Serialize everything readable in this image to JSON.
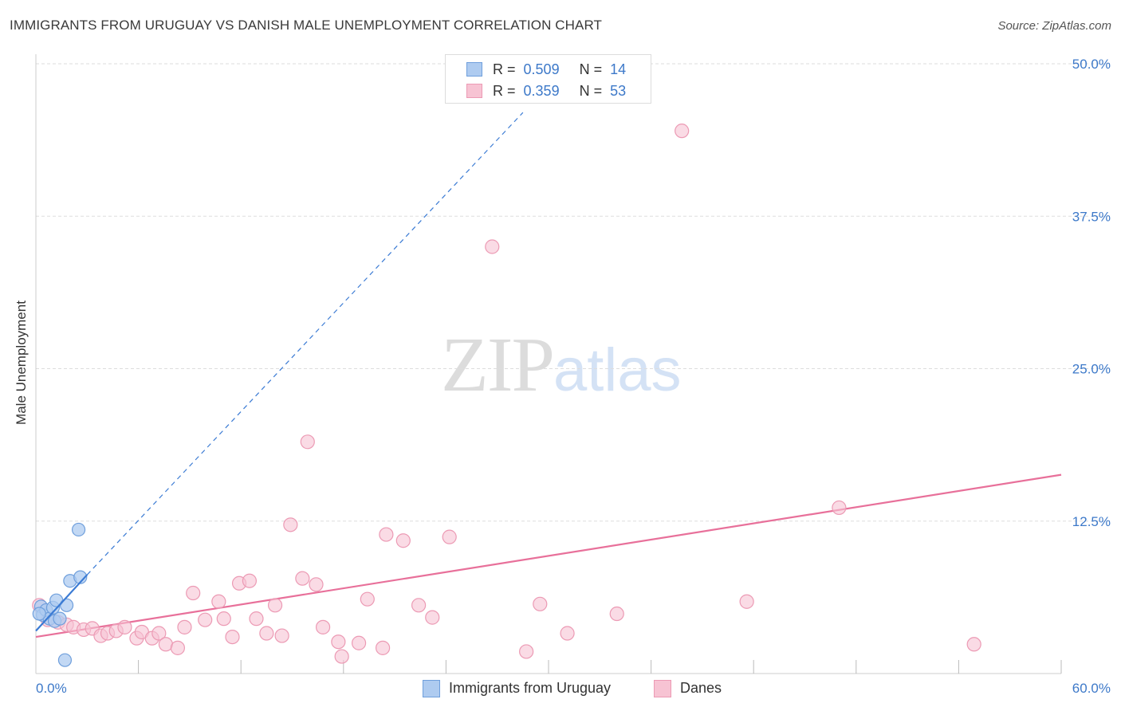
{
  "header": {
    "title": "IMMIGRANTS FROM URUGUAY VS DANISH MALE UNEMPLOYMENT CORRELATION CHART",
    "source": "Source: ZipAtlas.com"
  },
  "watermark": {
    "zip": "ZIP",
    "atlas": "atlas"
  },
  "legend_top": {
    "rows": [
      {
        "r_label": "R =",
        "r_value": "0.509",
        "n_label": "N =",
        "n_value": "14"
      },
      {
        "r_label": "R =",
        "r_value": "0.359",
        "n_label": "N =",
        "n_value": "53"
      }
    ]
  },
  "legend_bottom": {
    "items": [
      {
        "label": "Immigrants from Uruguay"
      },
      {
        "label": "Danes"
      }
    ]
  },
  "colors": {
    "uruguay_fill": "#aecbf0",
    "uruguay_stroke": "#6f9fdc",
    "uruguay_line": "#3b7bd4",
    "danes_fill": "#f7c3d3",
    "danes_stroke": "#ec9ab4",
    "danes_line": "#e8709a",
    "axis_text": "#3d79c9",
    "grid": "#dddddd"
  },
  "chart_data": {
    "type": "scatter",
    "title": "IMMIGRANTS FROM URUGUAY VS DANISH MALE UNEMPLOYMENT CORRELATION CHART",
    "xlabel": "",
    "ylabel": "Male Unemployment",
    "xlim": [
      0,
      60
    ],
    "ylim": [
      0,
      50
    ],
    "x_tick_labels": [
      "0.0%",
      "60.0%"
    ],
    "y_ticks": [
      12.5,
      25.0,
      37.5,
      50.0
    ],
    "y_tick_labels": [
      "12.5%",
      "25.0%",
      "37.5%",
      "50.0%"
    ],
    "grid": true,
    "series": [
      {
        "name": "Immigrants from Uruguay",
        "points": [
          [
            0.3,
            5.5
          ],
          [
            0.4,
            4.8
          ],
          [
            0.6,
            5.2
          ],
          [
            0.8,
            4.5
          ],
          [
            1.0,
            5.4
          ],
          [
            1.1,
            4.3
          ],
          [
            1.2,
            6.0
          ],
          [
            1.4,
            4.5
          ],
          [
            1.8,
            5.6
          ],
          [
            2.0,
            7.6
          ],
          [
            2.5,
            11.8
          ],
          [
            2.6,
            7.9
          ],
          [
            1.7,
            1.1
          ],
          [
            0.2,
            4.9
          ]
        ],
        "trend": {
          "x": [
            0,
            3.0
          ],
          "y": [
            3.5,
            8.1
          ],
          "extended_x": [
            3.0,
            28.5
          ],
          "extended_y": [
            8.1,
            46.0
          ]
        },
        "stats": {
          "R": 0.509,
          "N": 14
        }
      },
      {
        "name": "Danes",
        "points": [
          [
            0.2,
            5.6
          ],
          [
            0.7,
            4.4
          ],
          [
            1.3,
            4.2
          ],
          [
            1.8,
            4.0
          ],
          [
            2.2,
            3.8
          ],
          [
            2.8,
            3.6
          ],
          [
            3.3,
            3.7
          ],
          [
            3.8,
            3.1
          ],
          [
            4.2,
            3.3
          ],
          [
            4.7,
            3.5
          ],
          [
            5.2,
            3.8
          ],
          [
            5.9,
            2.9
          ],
          [
            6.2,
            3.4
          ],
          [
            6.8,
            2.9
          ],
          [
            7.2,
            3.3
          ],
          [
            7.6,
            2.4
          ],
          [
            8.3,
            2.1
          ],
          [
            8.7,
            3.8
          ],
          [
            9.2,
            6.6
          ],
          [
            9.9,
            4.4
          ],
          [
            10.7,
            5.9
          ],
          [
            11.0,
            4.5
          ],
          [
            11.5,
            3.0
          ],
          [
            11.9,
            7.4
          ],
          [
            12.5,
            7.6
          ],
          [
            12.9,
            4.5
          ],
          [
            13.5,
            3.3
          ],
          [
            14.0,
            5.6
          ],
          [
            14.4,
            3.1
          ],
          [
            14.9,
            12.2
          ],
          [
            15.6,
            7.8
          ],
          [
            15.9,
            19.0
          ],
          [
            16.4,
            7.3
          ],
          [
            16.8,
            3.8
          ],
          [
            17.7,
            2.6
          ],
          [
            17.9,
            1.4
          ],
          [
            18.9,
            2.5
          ],
          [
            19.4,
            6.1
          ],
          [
            20.3,
            2.1
          ],
          [
            20.5,
            11.4
          ],
          [
            21.5,
            10.9
          ],
          [
            22.4,
            5.6
          ],
          [
            23.2,
            4.6
          ],
          [
            24.2,
            11.2
          ],
          [
            26.7,
            35.0
          ],
          [
            28.7,
            1.8
          ],
          [
            29.5,
            5.7
          ],
          [
            31.1,
            3.3
          ],
          [
            34.0,
            4.9
          ],
          [
            37.8,
            44.5
          ],
          [
            41.6,
            5.9
          ],
          [
            47.0,
            13.6
          ],
          [
            54.9,
            2.4
          ]
        ],
        "trend": {
          "x": [
            0,
            60
          ],
          "y": [
            3.0,
            16.3
          ]
        },
        "stats": {
          "R": 0.359,
          "N": 53
        }
      }
    ]
  }
}
